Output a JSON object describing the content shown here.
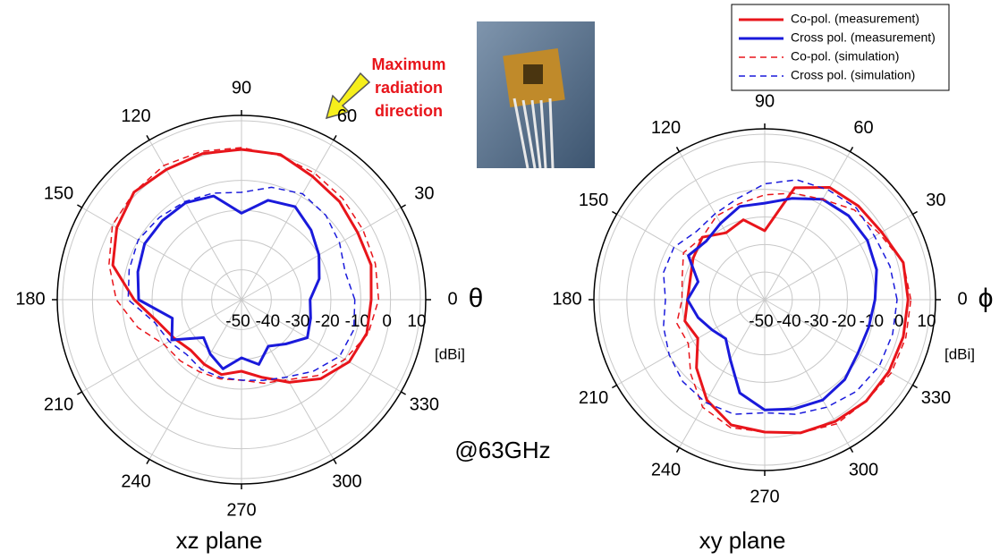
{
  "chart_data": [
    {
      "type": "polar",
      "title": "xz plane",
      "angle_label": "θ",
      "unit_label": "[dBi]",
      "theta": [
        0,
        15,
        30,
        45,
        60,
        75,
        90,
        105,
        120,
        135,
        150,
        165,
        180,
        195,
        210,
        225,
        240,
        255,
        270,
        285,
        300,
        315,
        330,
        345
      ],
      "angle_ticks": [
        0,
        30,
        60,
        90,
        120,
        150,
        180,
        210,
        240,
        270,
        300,
        330
      ],
      "rlim": [
        -50,
        10
      ],
      "rticks": [
        -50,
        -40,
        -30,
        -20,
        -10,
        0,
        10
      ],
      "grid": true,
      "legend": "top-right",
      "series": [
        {
          "name": "Co-pol. (measurement)",
          "color": "#e8151b",
          "style": "solid",
          "values": [
            -6.5,
            -5,
            -5,
            -3.5,
            -2.3,
            0.4,
            0.4,
            0.7,
            0.4,
            1,
            -1.7,
            -5.3,
            -14,
            -21,
            -24,
            -26,
            -25,
            -24,
            -26,
            -23,
            -18,
            -12.5,
            -8.3,
            -6.5
          ]
        },
        {
          "name": "Cross pol. (measurement)",
          "color": "#1a1adb",
          "style": "solid",
          "values": [
            -27,
            -23,
            -20,
            -17,
            -14,
            -15.5,
            -21,
            -14,
            -12.5,
            -12.5,
            -12.5,
            -14,
            -15.5,
            -26,
            -23,
            -32,
            -29,
            -26,
            -30.5,
            -27.5,
            -32,
            -29,
            -24.5,
            -26
          ]
        },
        {
          "name": "Co-pol. (simulation)",
          "color": "#e8151b",
          "style": "dashed",
          "values": [
            -4,
            -3.5,
            -3,
            -2,
            -1,
            0,
            1,
            1.5,
            2,
            1,
            0,
            -4,
            -8,
            -14,
            -20,
            -21,
            -22,
            -22.5,
            -23,
            -21,
            -19,
            -14,
            -10,
            -6
          ]
        },
        {
          "name": "Cross pol. (simulation)",
          "color": "#1a1adb",
          "style": "dashed",
          "values": [
            -12,
            -14,
            -12,
            -10,
            -9,
            -11,
            -14,
            -13,
            -12,
            -11,
            -10,
            -11,
            -12,
            -20,
            -22,
            -24,
            -23,
            -23,
            -23,
            -22,
            -20,
            -16,
            -12,
            -11
          ]
        }
      ]
    },
    {
      "type": "polar",
      "title": "xy plane",
      "angle_label": "ϕ",
      "unit_label": "[dBi]",
      "theta": [
        0,
        15,
        30,
        45,
        60,
        75,
        90,
        105,
        120,
        135,
        150,
        165,
        180,
        195,
        210,
        225,
        240,
        255,
        270,
        285,
        300,
        315,
        330,
        345
      ],
      "angle_ticks": [
        0,
        30,
        60,
        90,
        120,
        150,
        180,
        210,
        240,
        270,
        300,
        330
      ],
      "rlim": [
        -50,
        10
      ],
      "rticks": [
        -50,
        -40,
        -30,
        -20,
        -10,
        0,
        10
      ],
      "grid": true,
      "series": [
        {
          "color": "#e8151b",
          "style": "solid",
          "values": [
            2,
            2,
            -1,
            -2,
            -3,
            -8,
            -25,
            -20,
            -22,
            -18,
            -20,
            -22,
            -22,
            -20,
            -22,
            -15,
            -8,
            -3,
            -2,
            0,
            1,
            2,
            2,
            2
          ]
        },
        {
          "color": "#1a1adb",
          "style": "solid",
          "values": [
            -10,
            -8,
            -7,
            -7,
            -8,
            -12,
            -15,
            -15,
            -18,
            -20,
            -18,
            -25,
            -22,
            -25,
            -28,
            -30,
            -25,
            -15,
            -10,
            -9,
            -8,
            -9,
            -11,
            -11
          ]
        },
        {
          "color": "#e8151b",
          "style": "dashed",
          "values": [
            3,
            2,
            -2,
            -4,
            -8,
            -10,
            -12,
            -14,
            -15,
            -18,
            -16,
            -19,
            -20,
            -17,
            -18,
            -12,
            -5,
            -2,
            -2,
            0,
            2,
            2,
            3,
            3
          ]
        },
        {
          "color": "#1a1adb",
          "style": "dashed",
          "values": [
            -2,
            -3,
            -4,
            -3,
            -4,
            -5,
            -8,
            -12,
            -14,
            -15,
            -12,
            -12,
            -14,
            -12,
            -10,
            -8,
            -7,
            -7,
            -9,
            -7,
            -5,
            -3,
            -2,
            -2
          ]
        }
      ]
    }
  ],
  "frequency_label": "@63GHz",
  "annotation": [
    "Maximum",
    "radiation",
    "direction"
  ]
}
